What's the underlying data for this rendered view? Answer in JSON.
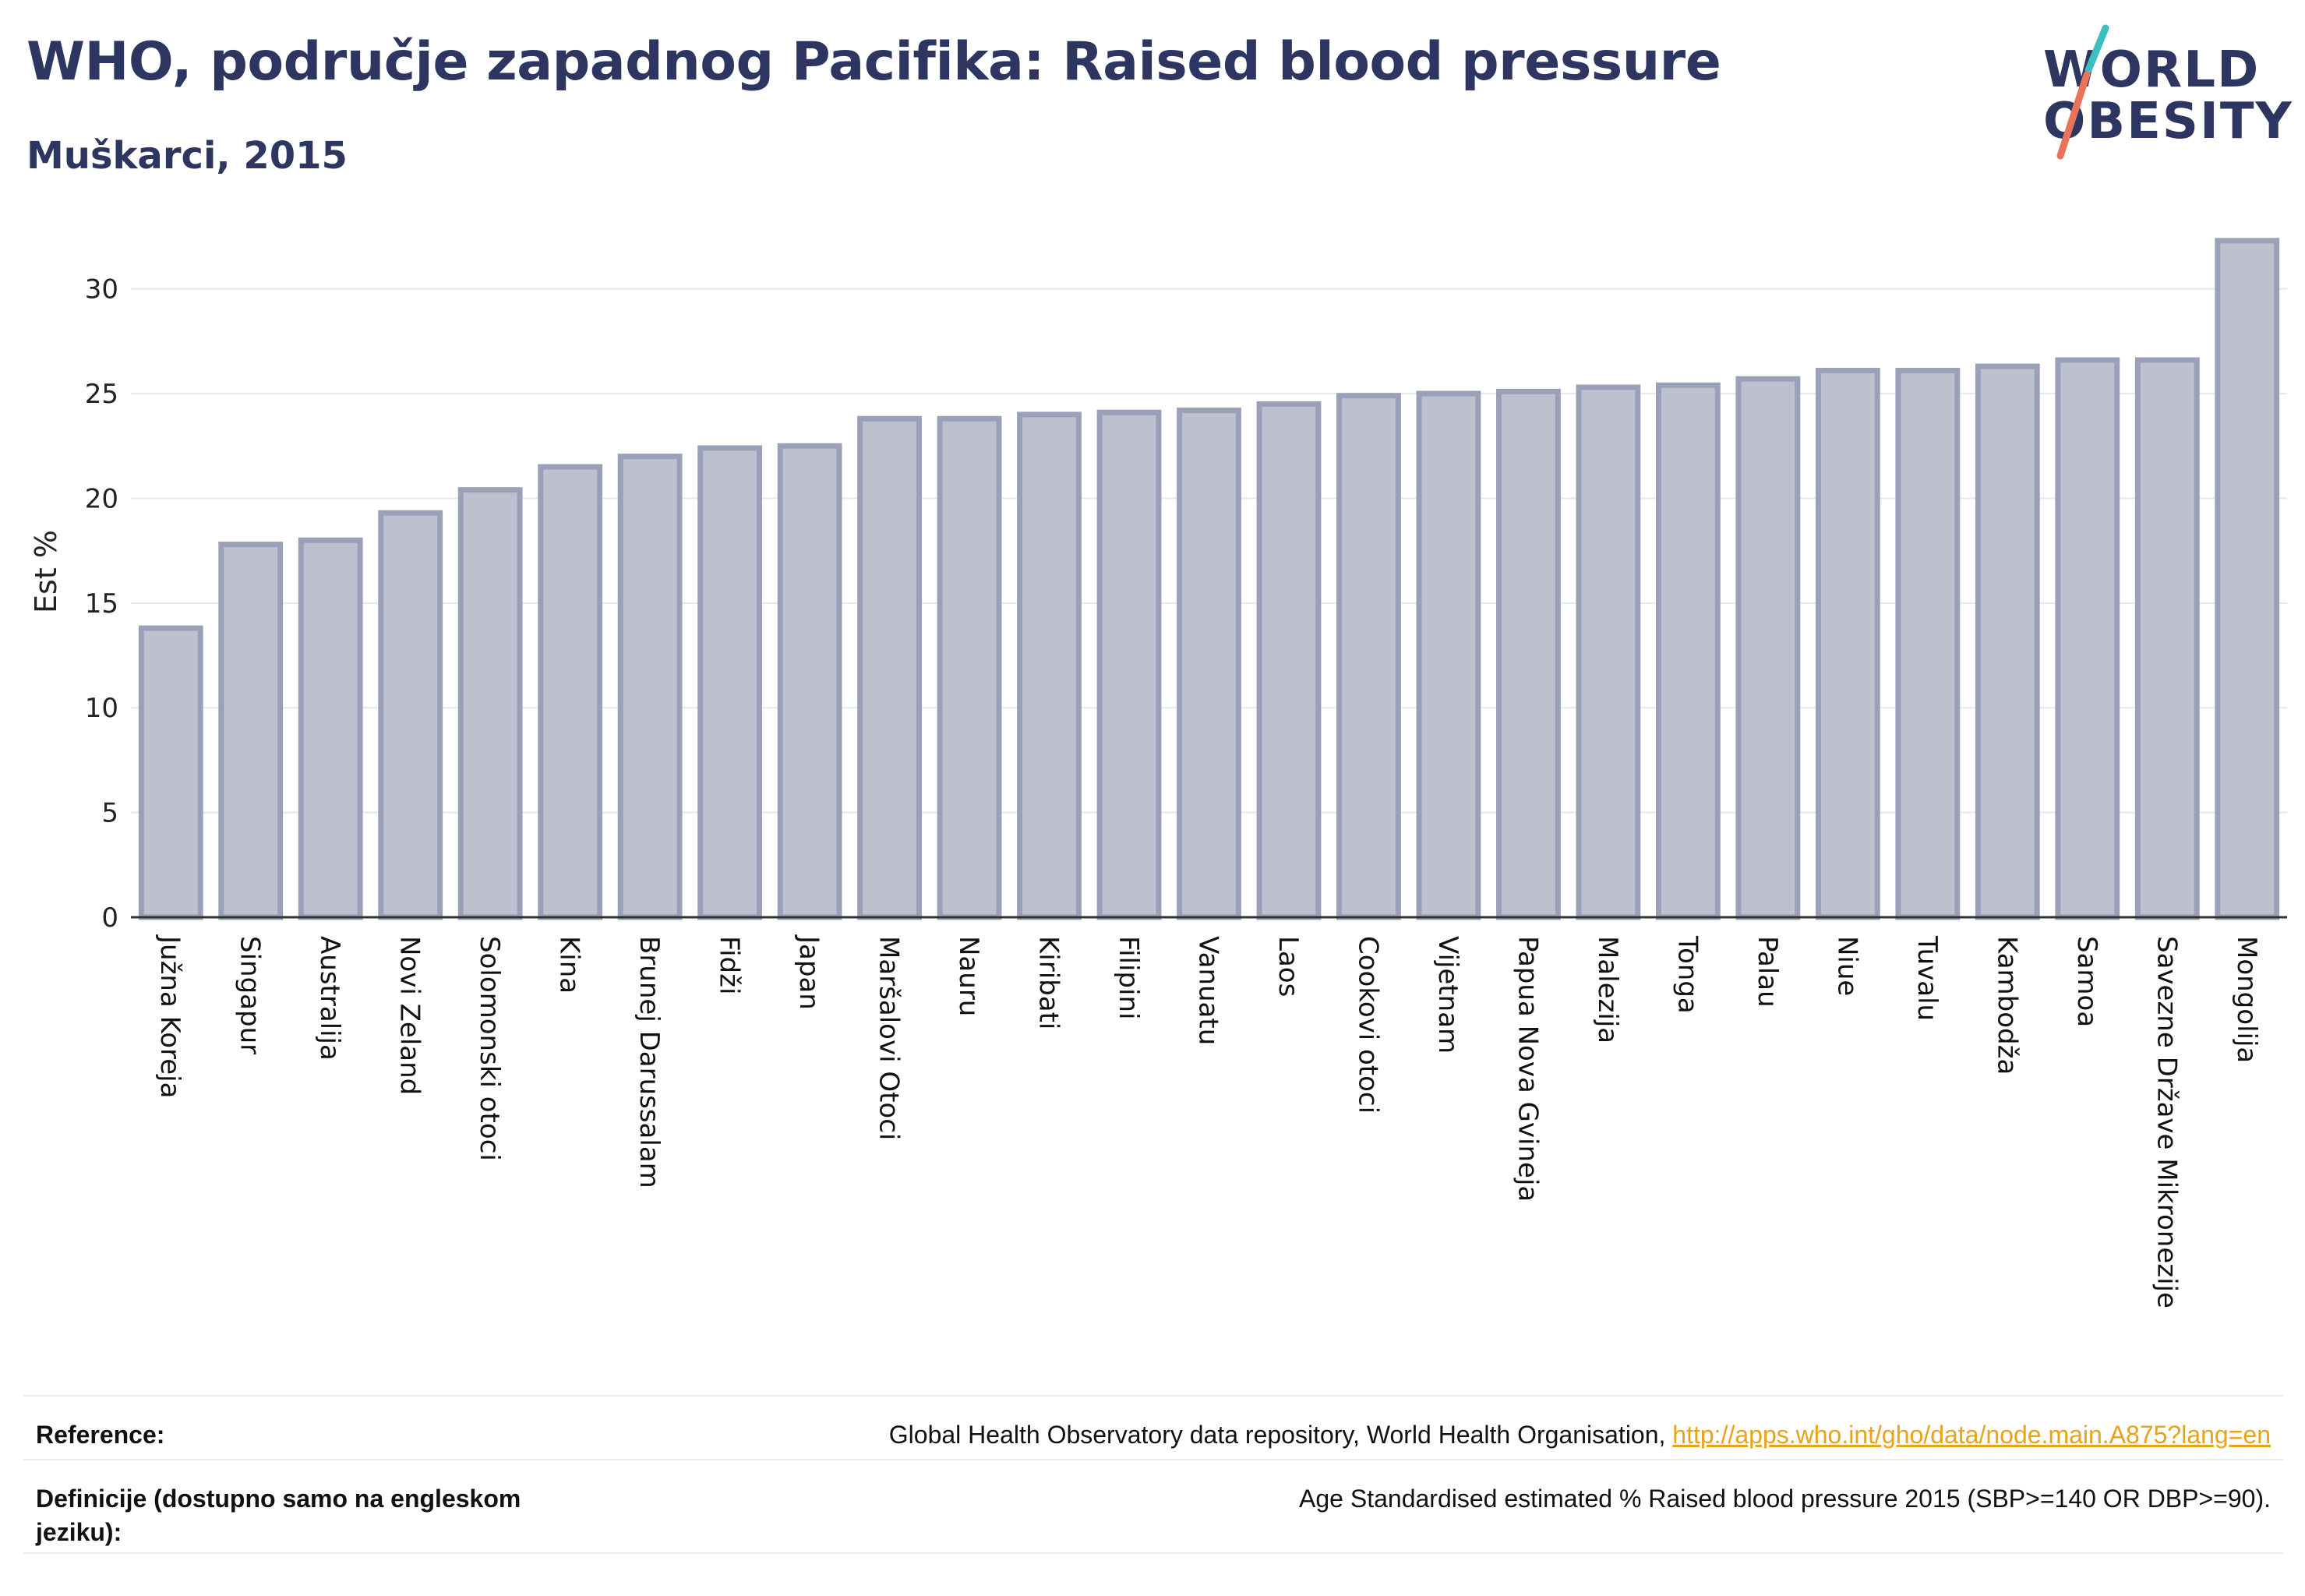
{
  "header": {
    "title": "WHO, područje zapadnog Pacifika: Raised blood pressure",
    "subtitle": "Muškarci, 2015"
  },
  "logo": {
    "line1": "WORLD",
    "line2": "OBESITY",
    "slash_colors": [
      "#3cbfbf",
      "#e8735a"
    ]
  },
  "colors": {
    "bar_fill": "#bdc0cf",
    "bar_stroke": "#9aa0b8",
    "title": "#2d3561",
    "link": "#e8a317",
    "gridline": "#e6e8ef"
  },
  "chart_data": {
    "type": "bar",
    "ylabel": "Est %",
    "xlabel": "",
    "ylim": [
      0,
      33
    ],
    "yticks": [
      0,
      5,
      10,
      15,
      20,
      25,
      30
    ],
    "grid": true,
    "categories": [
      "Južna Koreja",
      "Singapur",
      "Australija",
      "Novi Zeland",
      "Solomonski otoci",
      "Kina",
      "Brunej Darussalam",
      "Fidži",
      "Japan",
      "Maršalovi Otoci",
      "Nauru",
      "Kiribati",
      "Filipini",
      "Vanuatu",
      "Laos",
      "Cookovi otoci",
      "Vijetnam",
      "Papua Nova Gvineja",
      "Malezija",
      "Tonga",
      "Palau",
      "Niue",
      "Tuvalu",
      "Kambodža",
      "Samoa",
      "Savezne Države Mikronezije",
      "Mongolija"
    ],
    "values": [
      13.8,
      17.8,
      18.0,
      19.3,
      20.4,
      21.5,
      22.0,
      22.4,
      22.5,
      23.8,
      23.8,
      24.0,
      24.1,
      24.2,
      24.5,
      24.9,
      25.0,
      25.1,
      25.3,
      25.4,
      25.7,
      26.1,
      26.1,
      26.3,
      26.6,
      26.6,
      32.3
    ]
  },
  "footer": {
    "reference_label": "Reference:",
    "reference_text": "Global Health Observatory data repository, World Health Organisation, ",
    "reference_link": "http://apps.who.int/gho/data/node.main.A875?lang=en",
    "definitions_label": "Definicije (dostupno samo na engleskom jeziku):",
    "definitions_text": "Age Standardised estimated % Raised blood pressure 2015 (SBP>=140 OR DBP>=90)."
  }
}
